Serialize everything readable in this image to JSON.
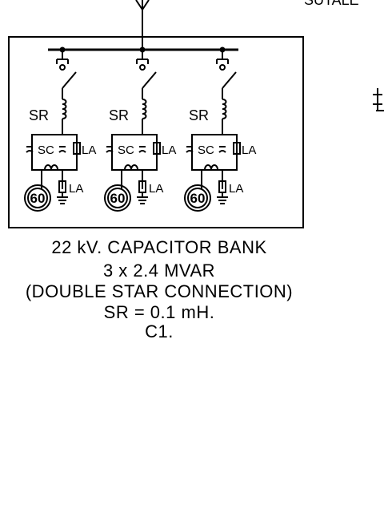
{
  "top_right_text": "SUTALE",
  "bays": [
    {
      "sr_label": "SR",
      "sc_label": "SC",
      "la_label_1": "LA",
      "la_label_2": "LA",
      "relay_label": "60"
    },
    {
      "sr_label": "SR",
      "sc_label": "SC",
      "la_label_1": "LA",
      "la_label_2": "LA",
      "relay_label": "60"
    },
    {
      "sr_label": "SR",
      "sc_label": "SC",
      "la_label_1": "LA",
      "la_label_2": "LA",
      "relay_label": "60"
    }
  ],
  "caption": {
    "line1": "22 kV. CAPACITOR BANK",
    "line2": "3 x 2.4 MVAR",
    "line3": "(DOUBLE STAR CONNECTION)",
    "line4": "SR = 0.1 mH.",
    "line5": "C1."
  }
}
